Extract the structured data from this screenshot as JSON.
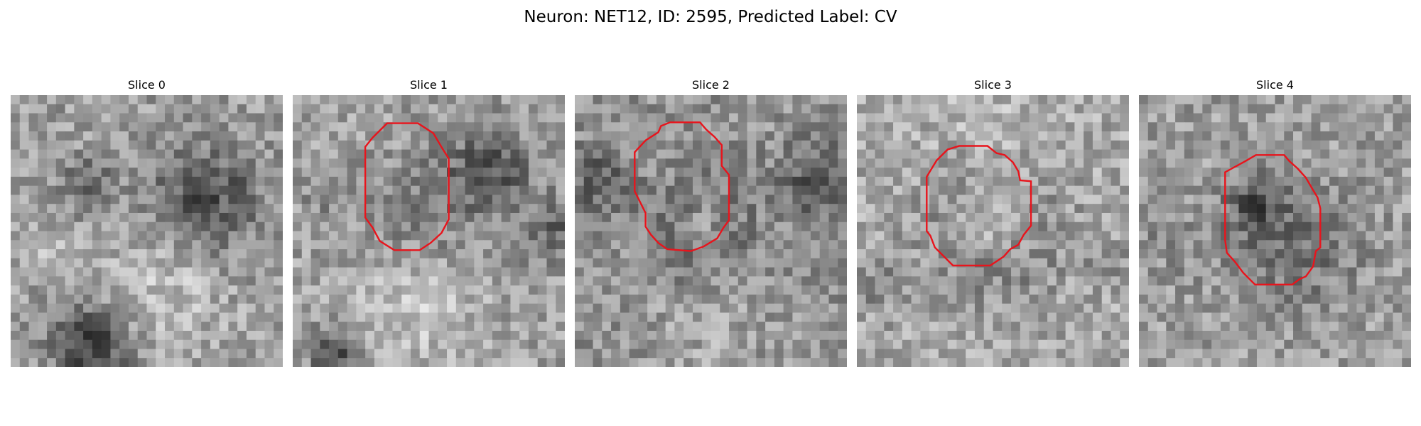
{
  "figure": {
    "title": "Neuron: NET12, ID: 2595, Predicted Label: CV"
  },
  "panels": [
    {
      "title": "Slice 0",
      "has_contour": false
    },
    {
      "title": "Slice 1",
      "has_contour": true
    },
    {
      "title": "Slice 2",
      "has_contour": true
    },
    {
      "title": "Slice 3",
      "has_contour": true
    },
    {
      "title": "Slice 4",
      "has_contour": true
    }
  ],
  "colors": {
    "contour": "#e8141c",
    "background": "#ffffff"
  },
  "image": {
    "colormap": "grayscale",
    "grid_cells": 30
  }
}
